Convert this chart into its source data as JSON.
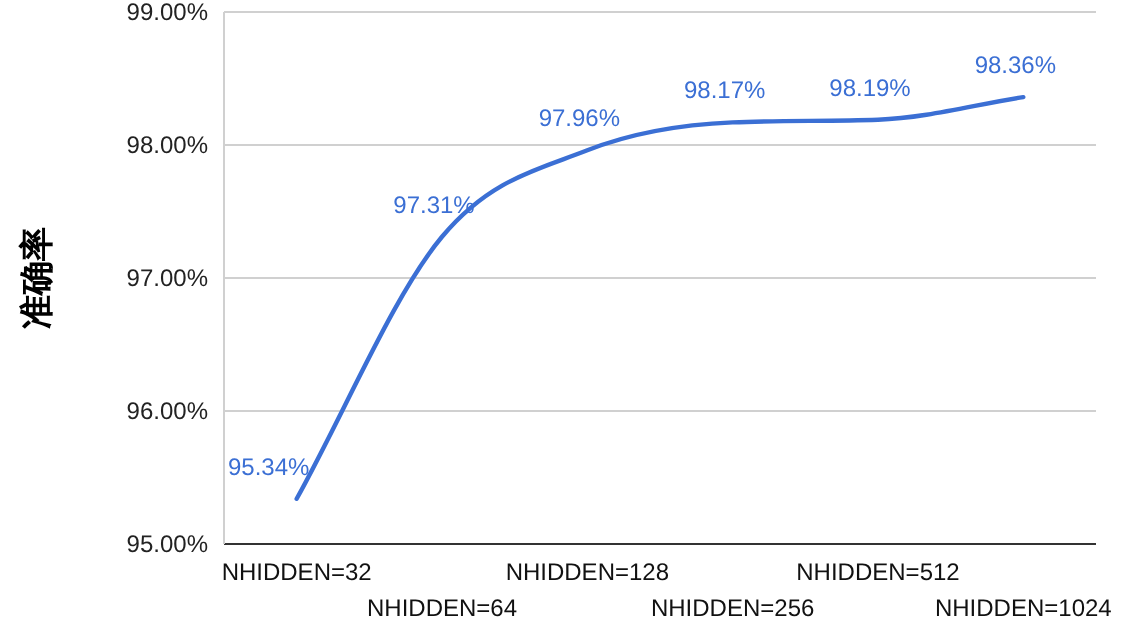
{
  "chart_data": {
    "type": "line",
    "ylabel": "准确率",
    "categories": [
      "NHIDDEN=32",
      "NHIDDEN=64",
      "NHIDDEN=128",
      "NHIDDEN=256",
      "NHIDDEN=512",
      "NHIDDEN=1024"
    ],
    "series": [
      {
        "color": "#3b6fd4",
        "values": [
          95.34,
          97.31,
          97.96,
          98.17,
          98.19,
          98.36
        ],
        "value_labels": [
          "95.34%",
          "97.31%",
          "97.96%",
          "98.17%",
          "98.19%",
          "98.36%"
        ]
      }
    ],
    "ylim": [
      95,
      99
    ],
    "yticks": [
      {
        "value": 95,
        "label": "95.00%"
      },
      {
        "value": 96,
        "label": "96.00%"
      },
      {
        "value": 97,
        "label": "97.00%"
      },
      {
        "value": 98,
        "label": "98.00%"
      },
      {
        "value": 99,
        "label": "99.00%"
      }
    ],
    "grid": "y",
    "marker": "none",
    "line_style": "solid"
  }
}
